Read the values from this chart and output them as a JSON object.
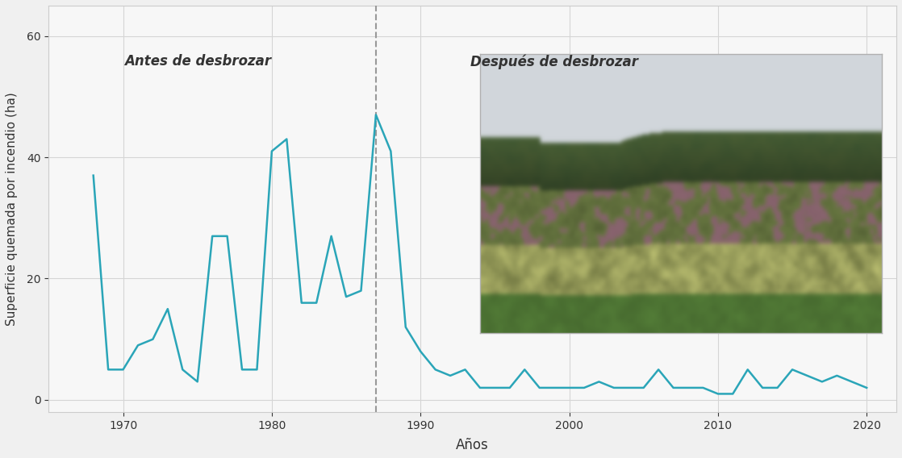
{
  "years": [
    1968,
    1969,
    1970,
    1971,
    1972,
    1973,
    1974,
    1975,
    1976,
    1977,
    1978,
    1979,
    1980,
    1981,
    1982,
    1983,
    1984,
    1985,
    1986,
    1987,
    1988,
    1989,
    1990,
    1991,
    1992,
    1993,
    1994,
    1995,
    1996,
    1997,
    1998,
    1999,
    2000,
    2001,
    2002,
    2003,
    2004,
    2005,
    2006,
    2007,
    2008,
    2009,
    2010,
    2011,
    2012,
    2013,
    2014,
    2015,
    2016,
    2017,
    2018,
    2019,
    2020
  ],
  "values": [
    37,
    5,
    5,
    9,
    10,
    15,
    5,
    3,
    27,
    27,
    5,
    5,
    41,
    43,
    16,
    16,
    27,
    17,
    18,
    47,
    41,
    12,
    8,
    5,
    4,
    5,
    2,
    2,
    2,
    5,
    2,
    2,
    2,
    2,
    3,
    2,
    2,
    2,
    5,
    2,
    2,
    2,
    1,
    1,
    5,
    2,
    2,
    5,
    4,
    3,
    4,
    3,
    2
  ],
  "divider_year": 1987,
  "line_color": "#2aa5b8",
  "line_width": 1.8,
  "divider_color": "#999999",
  "bg_color": "#f0f0f0",
  "plot_bg_color": "#f7f7f7",
  "grid_color": "#d5d5d5",
  "text_color": "#333333",
  "label_antes": "Antes de desbrozar",
  "label_despues": "Después de desbrozar",
  "xlabel": "Años",
  "ylabel": "Superficie quemada por incendio (ha)",
  "xlim": [
    1965,
    2022
  ],
  "ylim": [
    -2,
    65
  ],
  "yticks": [
    0,
    20,
    40,
    60
  ],
  "xticks": [
    1970,
    1980,
    1990,
    2000,
    2010,
    2020
  ],
  "photo_x0_data": 1994,
  "photo_x1_data": 2021,
  "photo_y0_data": 11,
  "photo_y1_data": 57
}
